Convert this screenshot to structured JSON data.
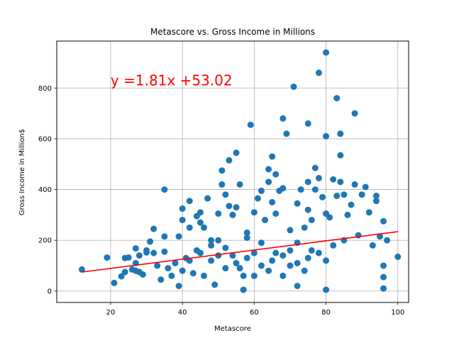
{
  "chart_data": {
    "type": "scatter",
    "title": "Metascore vs. Gross Income in Millions",
    "xlabel": "Metascore",
    "ylabel": "Gross Income in Million$",
    "xlim": [
      5,
      103
    ],
    "ylim": [
      -45,
      985
    ],
    "xticks": [
      20,
      40,
      60,
      80,
      100
    ],
    "yticks": [
      0,
      200,
      400,
      600,
      800
    ],
    "grid": true,
    "point_color": "#1f77b4",
    "regression": {
      "slope": 1.81,
      "intercept": 53.02,
      "x_range": [
        12,
        100
      ],
      "color": "#ff0000",
      "label": "y =1.81x +53.02",
      "label_pos": [
        20,
        810
      ]
    },
    "series": [
      {
        "points": [
          [
            12,
            85
          ],
          [
            19,
            132
          ],
          [
            21,
            32
          ],
          [
            23,
            58
          ],
          [
            24,
            75
          ],
          [
            24,
            130
          ],
          [
            25,
            132
          ],
          [
            26,
            85
          ],
          [
            27,
            80
          ],
          [
            27,
            110
          ],
          [
            27,
            168
          ],
          [
            28,
            75
          ],
          [
            28,
            140
          ],
          [
            29,
            65
          ],
          [
            30,
            152
          ],
          [
            30,
            160
          ],
          [
            31,
            195
          ],
          [
            32,
            245
          ],
          [
            32,
            150
          ],
          [
            33,
            100
          ],
          [
            34,
            45
          ],
          [
            35,
            400
          ],
          [
            35,
            215
          ],
          [
            35,
            155
          ],
          [
            36,
            90
          ],
          [
            37,
            60
          ],
          [
            38,
            110
          ],
          [
            39,
            20
          ],
          [
            39,
            215
          ],
          [
            40,
            325
          ],
          [
            40,
            280
          ],
          [
            41,
            130
          ],
          [
            42,
            355
          ],
          [
            42,
            250
          ],
          [
            43,
            70
          ],
          [
            44,
            295
          ],
          [
            45,
            310
          ],
          [
            45,
            270
          ],
          [
            46,
            250
          ],
          [
            47,
            365
          ],
          [
            48,
            200
          ],
          [
            49,
            25
          ],
          [
            50,
            305
          ],
          [
            51,
            475
          ],
          [
            51,
            420
          ],
          [
            52,
            380
          ],
          [
            53,
            515
          ],
          [
            53,
            335
          ],
          [
            54,
            300
          ],
          [
            55,
            545
          ],
          [
            55,
            330
          ],
          [
            56,
            420
          ],
          [
            57,
            60
          ],
          [
            57,
            5
          ],
          [
            58,
            230
          ],
          [
            59,
            655
          ],
          [
            60,
            310
          ],
          [
            61,
            365
          ],
          [
            62,
            395
          ],
          [
            63,
            280
          ],
          [
            64,
            480
          ],
          [
            64,
            430
          ],
          [
            65,
            530
          ],
          [
            65,
            350
          ],
          [
            66,
            460
          ],
          [
            66,
            305
          ],
          [
            67,
            395
          ],
          [
            68,
            680
          ],
          [
            68,
            405
          ],
          [
            69,
            620
          ],
          [
            70,
            240
          ],
          [
            71,
            805
          ],
          [
            72,
            345
          ],
          [
            72,
            20
          ],
          [
            73,
            400
          ],
          [
            74,
            250
          ],
          [
            75,
            660
          ],
          [
            75,
            430
          ],
          [
            75,
            320
          ],
          [
            76,
            280
          ],
          [
            77,
            485
          ],
          [
            77,
            400
          ],
          [
            78,
            860
          ],
          [
            78,
            445
          ],
          [
            79,
            370
          ],
          [
            80,
            940
          ],
          [
            80,
            610
          ],
          [
            80,
            305
          ],
          [
            80,
            5
          ],
          [
            81,
            290
          ],
          [
            82,
            440
          ],
          [
            83,
            760
          ],
          [
            83,
            375
          ],
          [
            84,
            620
          ],
          [
            84,
            535
          ],
          [
            84,
            430
          ],
          [
            85,
            380
          ],
          [
            86,
            300
          ],
          [
            87,
            340
          ],
          [
            88,
            700
          ],
          [
            88,
            420
          ],
          [
            89,
            220
          ],
          [
            90,
            380
          ],
          [
            91,
            410
          ],
          [
            92,
            310
          ],
          [
            93,
            180
          ],
          [
            94,
            375
          ],
          [
            94,
            355
          ],
          [
            95,
            215
          ],
          [
            96,
            275
          ],
          [
            96,
            100
          ],
          [
            96,
            55
          ],
          [
            96,
            10
          ],
          [
            97,
            200
          ],
          [
            100,
            135
          ],
          [
            45,
            150
          ],
          [
            48,
            120
          ],
          [
            50,
            140
          ],
          [
            52,
            90
          ],
          [
            55,
            110
          ],
          [
            58,
            130
          ],
          [
            60,
            150
          ],
          [
            62,
            100
          ],
          [
            65,
            120
          ],
          [
            68,
            140
          ],
          [
            70,
            160
          ],
          [
            72,
            110
          ],
          [
            75,
            130
          ],
          [
            78,
            150
          ],
          [
            80,
            120
          ],
          [
            82,
            180
          ],
          [
            85,
            200
          ],
          [
            40,
            80
          ],
          [
            42,
            120
          ],
          [
            44,
            160
          ],
          [
            46,
            60
          ],
          [
            48,
            180
          ],
          [
            50,
            200
          ],
          [
            52,
            170
          ],
          [
            54,
            140
          ],
          [
            56,
            90
          ],
          [
            58,
            210
          ],
          [
            60,
            60
          ],
          [
            62,
            190
          ],
          [
            64,
            80
          ],
          [
            66,
            150
          ],
          [
            68,
            60
          ],
          [
            70,
            100
          ],
          [
            72,
            190
          ],
          [
            74,
            80
          ],
          [
            76,
            160
          ]
        ]
      }
    ]
  }
}
